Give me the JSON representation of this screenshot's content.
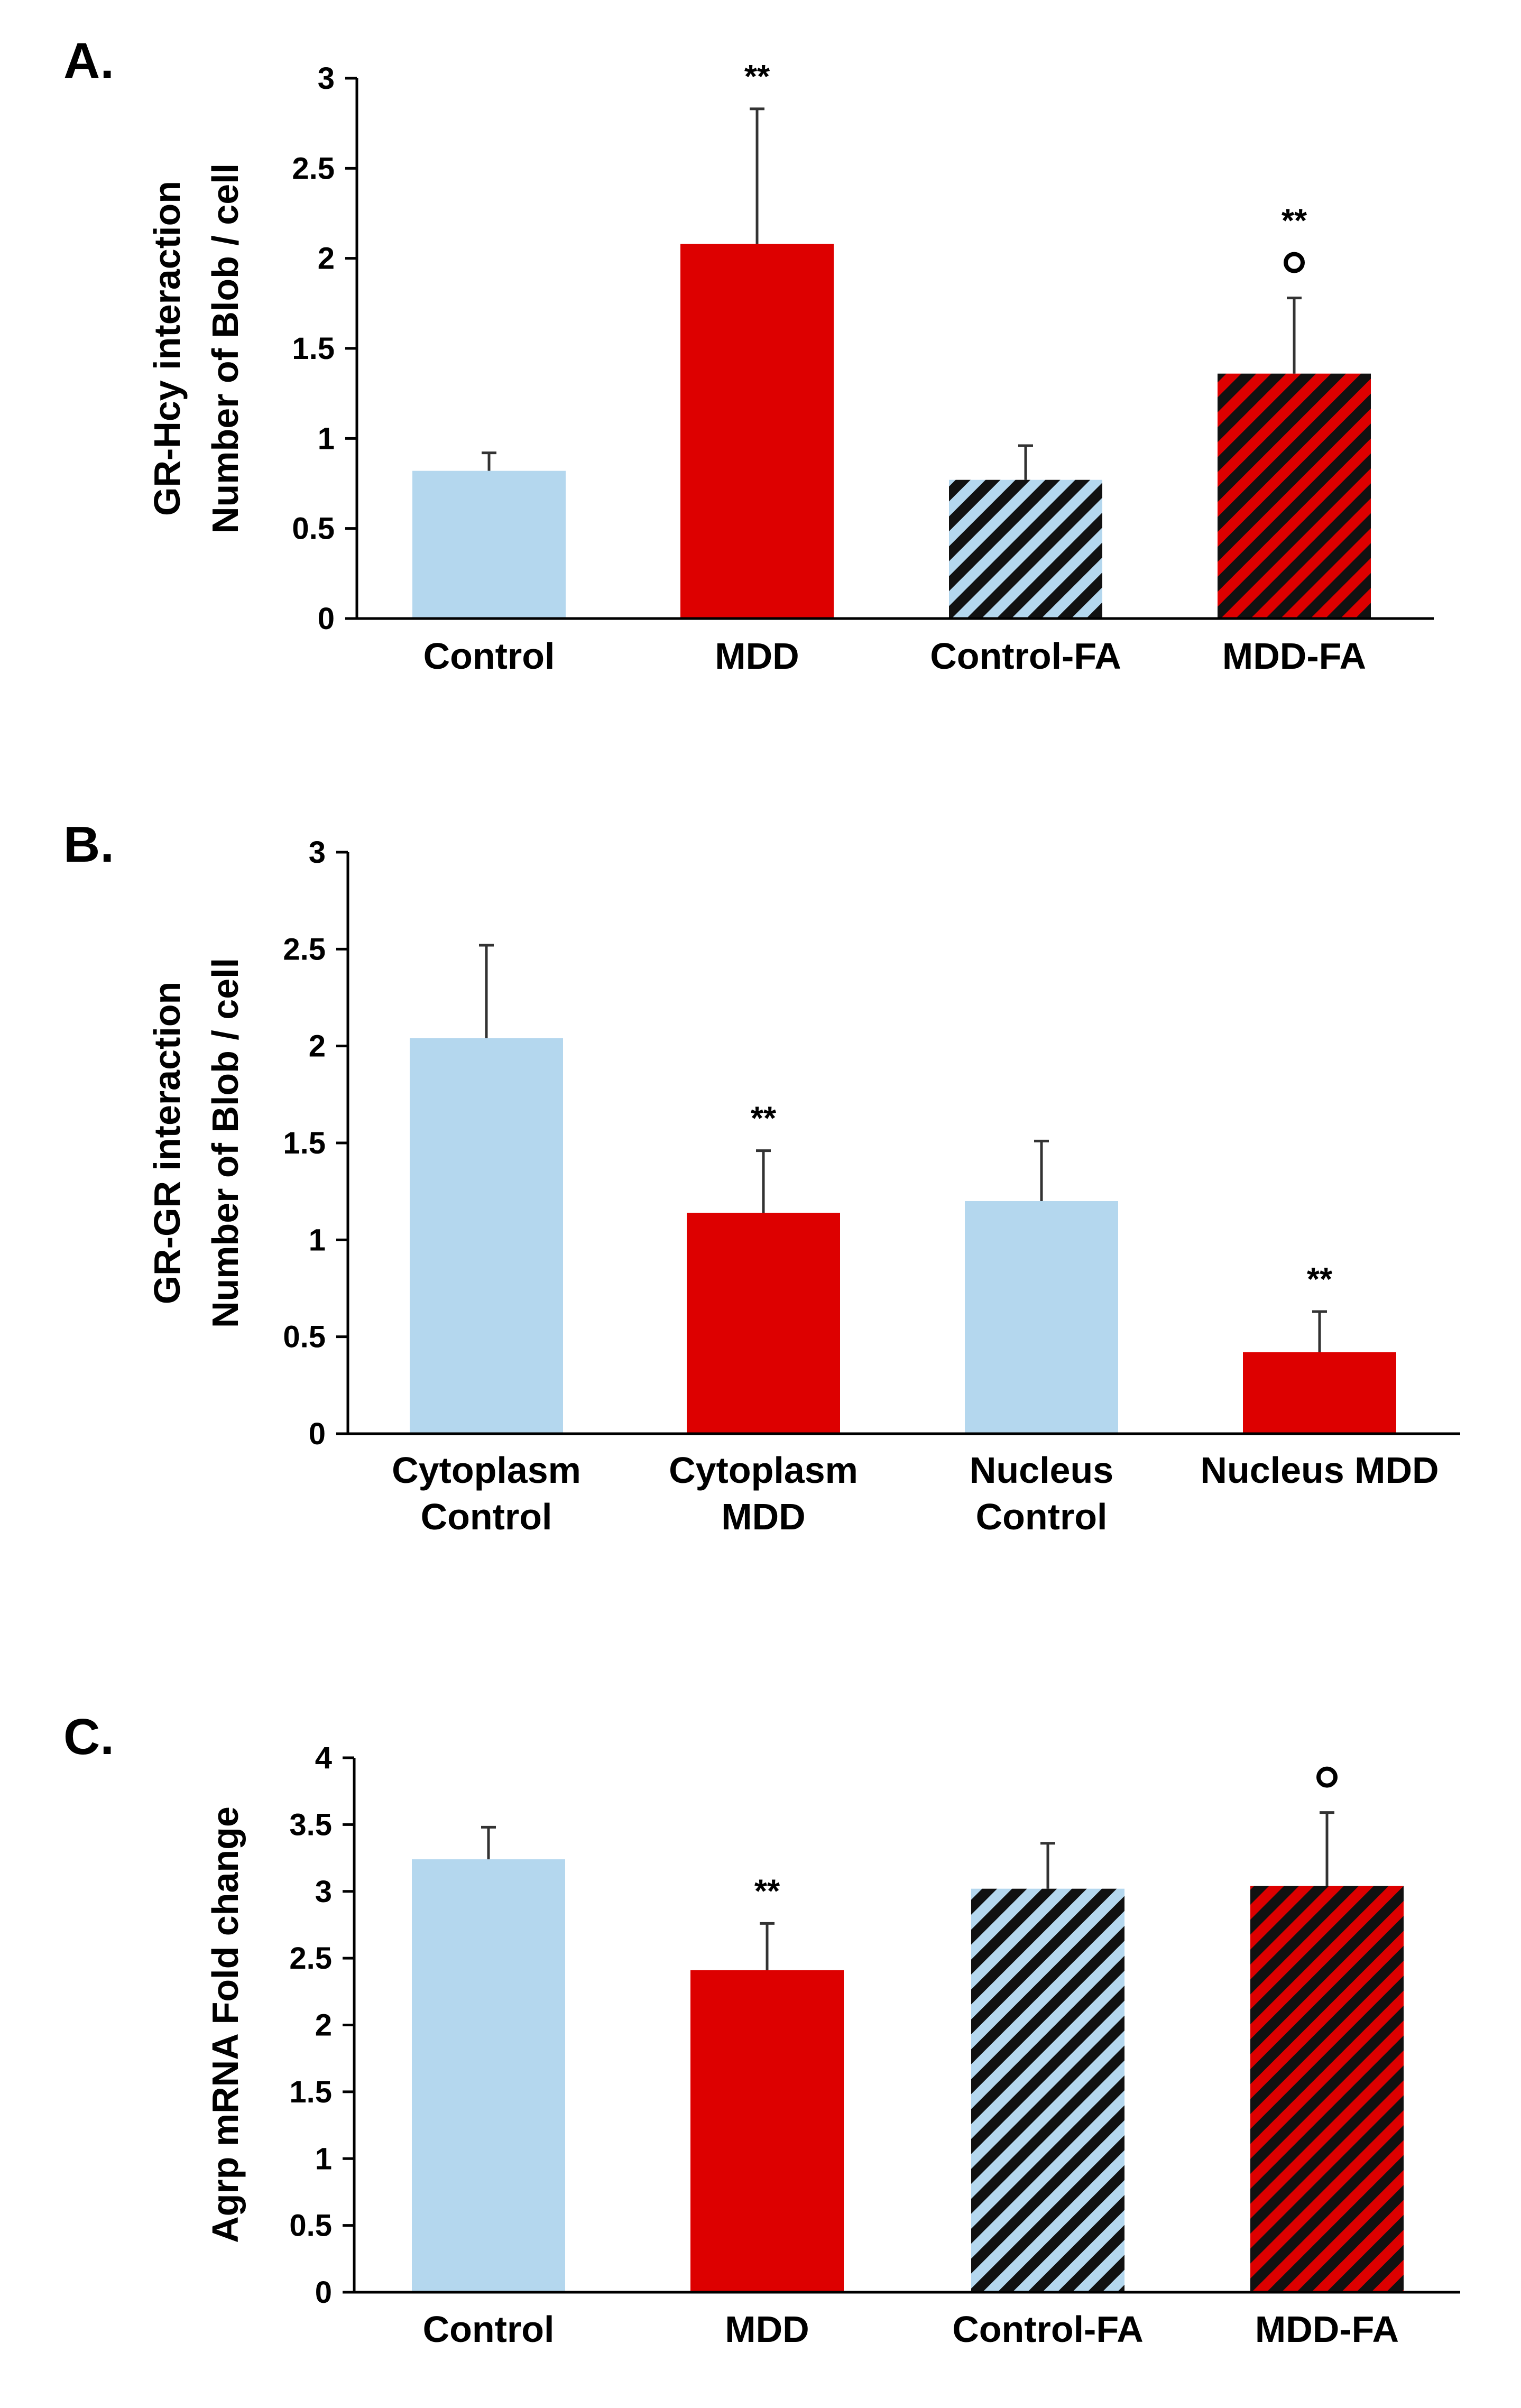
{
  "chart_data": [
    {
      "type": "bar",
      "panel_label": "A.",
      "ylabel_line1": "GR-Hcy interaction",
      "ylabel_line2": "Number of Blob / cell",
      "ylim": [
        0,
        3
      ],
      "yticks": [
        "0",
        "0.5",
        "1",
        "1.5",
        "2",
        "2.5",
        "3"
      ],
      "categories": [
        [
          "Control"
        ],
        [
          "MDD"
        ],
        [
          "Control-FA"
        ],
        [
          "MDD-FA"
        ]
      ],
      "values": [
        0.82,
        2.08,
        0.77,
        1.36
      ],
      "errors": [
        0.1,
        0.75,
        0.19,
        0.42
      ],
      "fills": [
        "#b4d7ee",
        "#dd0000",
        "#b4d7ee",
        "#dd0000"
      ],
      "hatched": [
        false,
        false,
        true,
        true
      ],
      "sig_stars": [
        "",
        "**",
        "",
        "**"
      ],
      "sig_circle": [
        false,
        false,
        false,
        true
      ]
    },
    {
      "type": "bar",
      "panel_label": "B.",
      "ylabel_line1": "GR-GR interaction",
      "ylabel_line2": "Number of Blob / cell",
      "ylim": [
        0,
        3
      ],
      "yticks": [
        "0",
        "0.5",
        "1",
        "1.5",
        "2",
        "2.5",
        "3"
      ],
      "categories": [
        [
          "Cytoplasm",
          "Control"
        ],
        [
          "Cytoplasm",
          "MDD"
        ],
        [
          "Nucleus",
          "Control"
        ],
        [
          "Nucleus MDD"
        ]
      ],
      "values": [
        2.04,
        1.14,
        1.2,
        0.42
      ],
      "errors": [
        0.48,
        0.32,
        0.31,
        0.21
      ],
      "fills": [
        "#b4d7ee",
        "#dd0000",
        "#b4d7ee",
        "#dd0000"
      ],
      "hatched": [
        false,
        false,
        false,
        false
      ],
      "sig_stars": [
        "",
        "**",
        "",
        "**"
      ],
      "sig_circle": [
        false,
        false,
        false,
        false
      ]
    },
    {
      "type": "bar",
      "panel_label": "C.",
      "ylabel_line1": "Agrp mRNA Fold change",
      "ylabel_line2": "",
      "ylim": [
        0,
        4
      ],
      "yticks": [
        "0",
        "0.5",
        "1",
        "1.5",
        "2",
        "2.5",
        "3",
        "3.5",
        "4"
      ],
      "categories": [
        [
          "Control"
        ],
        [
          "MDD"
        ],
        [
          "Control-FA"
        ],
        [
          "MDD-FA"
        ]
      ],
      "values": [
        3.24,
        2.41,
        3.02,
        3.04
      ],
      "errors": [
        0.24,
        0.35,
        0.34,
        0.55
      ],
      "fills": [
        "#b4d7ee",
        "#dd0000",
        "#b4d7ee",
        "#dd0000"
      ],
      "hatched": [
        false,
        false,
        true,
        true
      ],
      "sig_stars": [
        "",
        "**",
        "",
        ""
      ],
      "sig_circle": [
        false,
        false,
        false,
        true
      ]
    }
  ]
}
